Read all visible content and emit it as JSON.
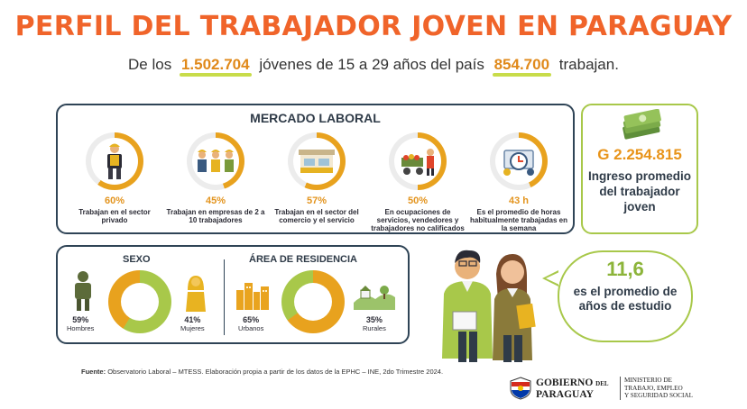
{
  "title": "PERFIL DEL TRABAJADOR JOVEN EN PARAGUAY",
  "subtitle": {
    "pre": "De los",
    "youth_total": "1.502.704",
    "mid": "jóvenes de 15 a 29 años del país",
    "working_total": "854.700",
    "post": "trabajan."
  },
  "market": {
    "heading": "MERCADO LABORAL",
    "stats": [
      {
        "value": "60%",
        "desc": "Trabajan en el sector privado",
        "level": 0.6,
        "icon": "worker-icon"
      },
      {
        "value": "45%",
        "desc": "Trabajan en empresas de 2 a 10 trabajadores",
        "level": 0.45,
        "icon": "team-icon"
      },
      {
        "value": "57%",
        "desc": "Trabajan en el sector del comercio y el servicio",
        "level": 0.57,
        "icon": "store-icon"
      },
      {
        "value": "50%",
        "desc": "En ocupaciones de servicios, vendedores y trabajadores no calificados",
        "level": 0.5,
        "icon": "vendor-cart-icon"
      },
      {
        "value": "43 h",
        "desc": "Es el promedio de horas habitualmente trabajadas en la semana",
        "level": 0.43,
        "icon": "clock-icon"
      }
    ]
  },
  "income": {
    "amount": "G 2.254.815",
    "label": "Ingreso promedio del trabajador joven",
    "icon": "money-stack-icon"
  },
  "sexo": {
    "heading": "SEXO",
    "men_pct": "59%",
    "men_label": "Hombres",
    "women_pct": "41%",
    "women_label": "Mujeres",
    "men_share": 0.59
  },
  "residencia": {
    "heading": "ÁREA DE RESIDENCIA",
    "urban_pct": "65%",
    "urban_label": "Urbanos",
    "rural_pct": "35%",
    "rural_label": "Rurales",
    "urban_share": 0.65
  },
  "study": {
    "years": "11,6",
    "label": "es el promedio de años de estudio"
  },
  "source": {
    "label": "Fuente:",
    "text": "Observatorio Laboral – MTESS. Elaboración propia a partir de los datos de la EPHC – INE, 2do Trimestre 2024."
  },
  "footer": {
    "gov_line1": "GOBIERNO",
    "gov_del": "DEL",
    "gov_line2": "PARAGUAY",
    "ministry_l1": "MINISTERIO DE",
    "ministry_l2": "TRABAJO, EMPLEO",
    "ministry_l3": "Y SEGURIDAD SOCIAL"
  },
  "colors": {
    "orange": "#f0642a",
    "gold": "#e8a21e",
    "green": "#a8c84a",
    "navy": "#2f4456"
  }
}
